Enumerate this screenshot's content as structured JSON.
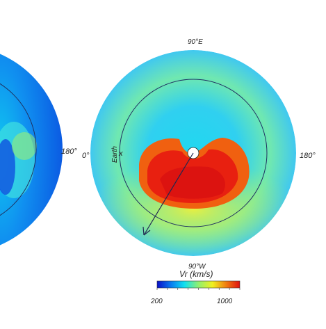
{
  "right_panel": {
    "label_top": "90°E",
    "label_bottom": "90°W",
    "label_left": "0°",
    "label_right": "180°",
    "earth_label": "Earth",
    "earth_marker": "x"
  },
  "left_panel": {
    "label_right": "180°"
  },
  "colorbar": {
    "title": "Vr (km/s)",
    "min_label": "200",
    "max_label": "1000",
    "min": 200,
    "max": 1000,
    "colormap": [
      "#0a10c8",
      "#0a7cf0",
      "#10e0f0",
      "#90f070",
      "#f0f020",
      "#f08010",
      "#e01010"
    ]
  }
}
